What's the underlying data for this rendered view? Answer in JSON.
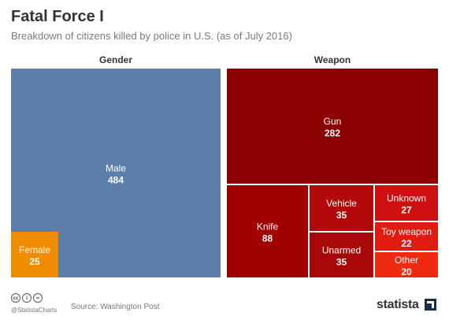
{
  "header": {
    "title": "Fatal Force I",
    "subtitle": "Breakdown of citizens killed by police in U.S. (as of July 2016)"
  },
  "footer": {
    "handle": "@StatistaCharts",
    "source": "Source: Washington Post",
    "brand": "statista",
    "icons": [
      "cc-icon",
      "attribution-icon",
      "no-derivatives-icon"
    ]
  },
  "colors": {
    "male": "#5b7fa8",
    "female": "#f08c00",
    "gun": "#8b0000",
    "knife": "#a00000",
    "vehicle": "#b20a0a",
    "unarmed": "#a80808",
    "unknown": "#d01010",
    "toy_weapon": "#e01c10",
    "other": "#f02a10"
  },
  "chart_data": [
    {
      "type": "treemap",
      "title": "Gender",
      "items": [
        {
          "label": "Male",
          "value": 484
        },
        {
          "label": "Female",
          "value": 25
        }
      ]
    },
    {
      "type": "treemap",
      "title": "Weapon",
      "items": [
        {
          "label": "Gun",
          "value": 282
        },
        {
          "label": "Knife",
          "value": 88
        },
        {
          "label": "Vehicle",
          "value": 35
        },
        {
          "label": "Unarmed",
          "value": 35
        },
        {
          "label": "Unknown",
          "value": 27
        },
        {
          "label": "Toy weapon",
          "value": 22
        },
        {
          "label": "Other",
          "value": 20
        }
      ]
    }
  ]
}
